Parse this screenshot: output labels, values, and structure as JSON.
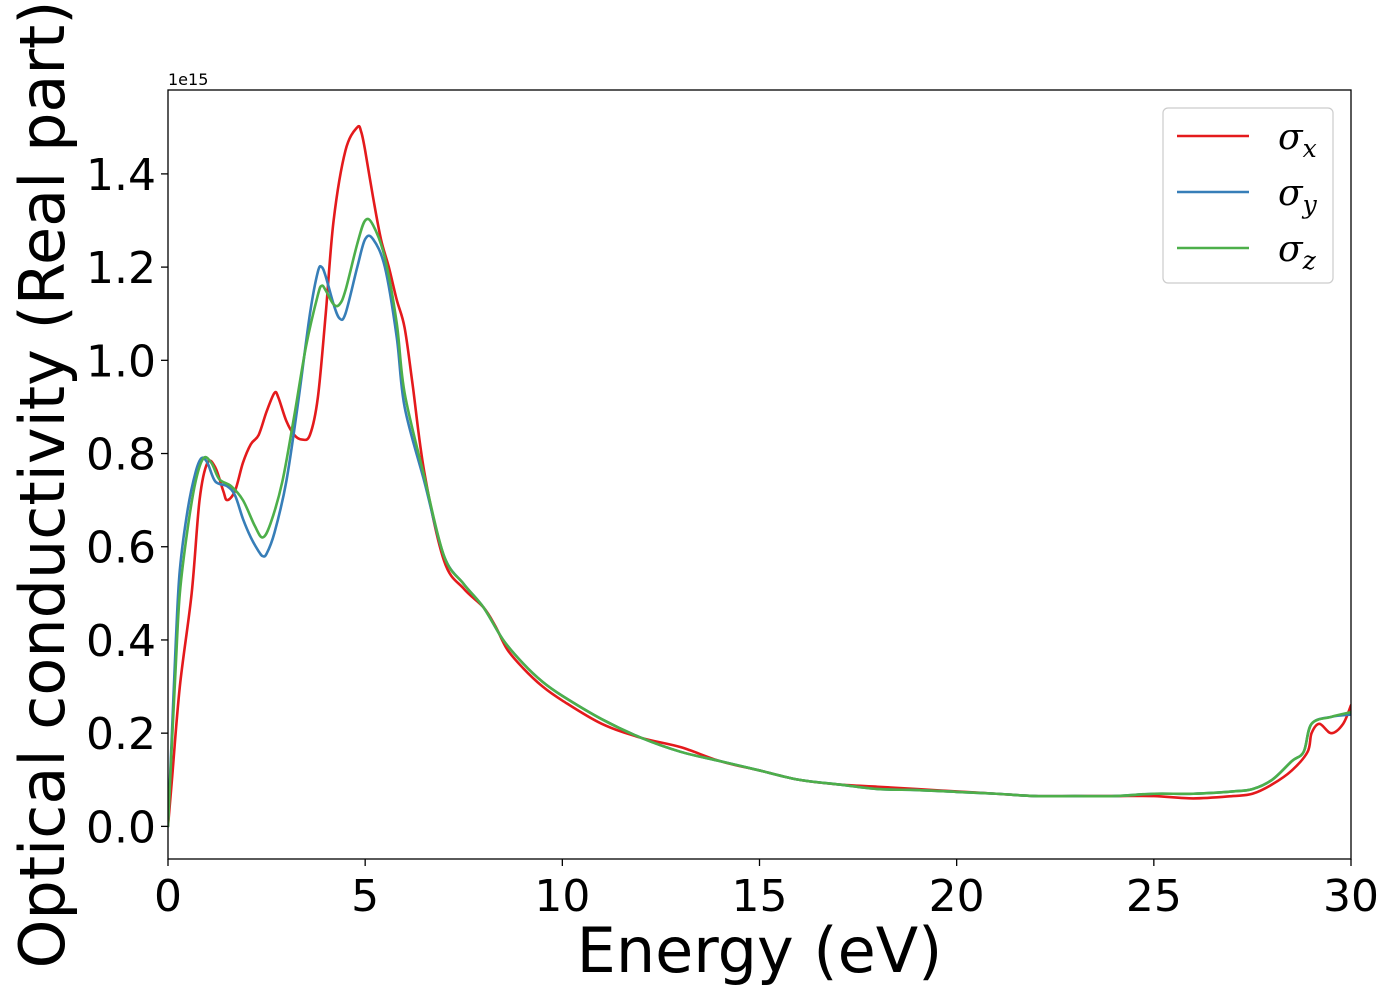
{
  "chart_data": {
    "type": "line",
    "xlabel": "Energy (eV)",
    "ylabel": "Optical conductivity (Real part)",
    "y_offset_label": "1e15",
    "xlim": [
      0,
      30
    ],
    "ylim": [
      -0.07,
      1.58
    ],
    "xticks": [
      0,
      5,
      10,
      15,
      20,
      25,
      30
    ],
    "xtick_labels": [
      "0",
      "5",
      "10",
      "15",
      "20",
      "25",
      "30"
    ],
    "yticks": [
      0.0,
      0.2,
      0.4,
      0.6,
      0.8,
      1.0,
      1.2,
      1.4
    ],
    "ytick_labels": [
      "0.0",
      "0.2",
      "0.4",
      "0.6",
      "0.8",
      "1.0",
      "1.2",
      "1.4"
    ],
    "grid": false,
    "legend_position": "top-right",
    "series": [
      {
        "name": "σx",
        "symbol": "σ",
        "subscript": "x",
        "color": "#e41a1c",
        "x": [
          0,
          0.1,
          0.3,
          0.6,
          0.8,
          1.0,
          1.2,
          1.4,
          1.5,
          1.7,
          1.9,
          2.1,
          2.3,
          2.5,
          2.7,
          2.8,
          3.0,
          3.2,
          3.4,
          3.6,
          3.8,
          4.0,
          4.2,
          4.5,
          4.8,
          4.9,
          5.0,
          5.2,
          5.4,
          5.6,
          5.8,
          6.0,
          6.2,
          6.5,
          7.0,
          7.5,
          8.0,
          8.3,
          8.6,
          9.0,
          9.5,
          10,
          11,
          12,
          13,
          14,
          15,
          16,
          17,
          18,
          19,
          20,
          21,
          22,
          23,
          24,
          25,
          26,
          27,
          27.5,
          28,
          28.5,
          28.9,
          29.0,
          29.2,
          29.5,
          29.8,
          30
        ],
        "y": [
          0.0,
          0.1,
          0.3,
          0.5,
          0.7,
          0.78,
          0.77,
          0.72,
          0.7,
          0.72,
          0.78,
          0.82,
          0.84,
          0.89,
          0.93,
          0.92,
          0.87,
          0.84,
          0.83,
          0.84,
          0.92,
          1.1,
          1.3,
          1.45,
          1.5,
          1.49,
          1.45,
          1.35,
          1.26,
          1.2,
          1.13,
          1.07,
          0.95,
          0.76,
          0.57,
          0.51,
          0.47,
          0.43,
          0.38,
          0.34,
          0.3,
          0.27,
          0.22,
          0.19,
          0.17,
          0.14,
          0.12,
          0.1,
          0.09,
          0.085,
          0.08,
          0.075,
          0.07,
          0.065,
          0.065,
          0.065,
          0.065,
          0.06,
          0.065,
          0.07,
          0.09,
          0.12,
          0.16,
          0.2,
          0.22,
          0.2,
          0.22,
          0.26
        ]
      },
      {
        "name": "σy",
        "symbol": "σ",
        "subscript": "y",
        "color": "#377eb8",
        "x": [
          0,
          0.1,
          0.2,
          0.3,
          0.5,
          0.7,
          0.85,
          1.0,
          1.2,
          1.5,
          1.7,
          1.9,
          2.1,
          2.3,
          2.4,
          2.5,
          2.7,
          3.0,
          3.3,
          3.6,
          3.8,
          3.9,
          4.0,
          4.2,
          4.35,
          4.5,
          4.8,
          5.0,
          5.2,
          5.5,
          5.8,
          6.0,
          6.5,
          7.0,
          7.5,
          8.0,
          8.5,
          9.0,
          9.5,
          10,
          11,
          12,
          13,
          14,
          15,
          16,
          17,
          18,
          19,
          20,
          21,
          22,
          23,
          24,
          25,
          26,
          27,
          27.5,
          28,
          28.5,
          28.8,
          29.0,
          29.5,
          30
        ],
        "y": [
          0.0,
          0.2,
          0.4,
          0.55,
          0.68,
          0.76,
          0.79,
          0.78,
          0.74,
          0.73,
          0.71,
          0.66,
          0.62,
          0.59,
          0.58,
          0.585,
          0.63,
          0.74,
          0.91,
          1.1,
          1.19,
          1.2,
          1.18,
          1.12,
          1.09,
          1.1,
          1.2,
          1.26,
          1.26,
          1.2,
          1.05,
          0.9,
          0.74,
          0.58,
          0.52,
          0.47,
          0.4,
          0.35,
          0.31,
          0.28,
          0.23,
          0.19,
          0.16,
          0.14,
          0.12,
          0.1,
          0.09,
          0.08,
          0.078,
          0.074,
          0.07,
          0.065,
          0.065,
          0.065,
          0.07,
          0.07,
          0.075,
          0.08,
          0.1,
          0.14,
          0.16,
          0.22,
          0.235,
          0.24
        ]
      },
      {
        "name": "σz",
        "symbol": "σ",
        "subscript": "z",
        "color": "#4daf4a",
        "x": [
          0,
          0.1,
          0.2,
          0.3,
          0.5,
          0.7,
          0.9,
          1.1,
          1.3,
          1.6,
          1.9,
          2.2,
          2.4,
          2.6,
          2.9,
          3.2,
          3.5,
          3.8,
          3.9,
          4.0,
          4.2,
          4.35,
          4.5,
          4.8,
          5.0,
          5.2,
          5.5,
          5.8,
          6.0,
          6.5,
          7.0,
          7.5,
          8.0,
          8.5,
          9.0,
          9.5,
          10,
          11,
          12,
          13,
          14,
          15,
          16,
          17,
          18,
          19,
          20,
          21,
          22,
          23,
          24,
          25,
          26,
          27,
          27.5,
          28,
          28.5,
          28.8,
          29.0,
          29.5,
          30
        ],
        "y": [
          0.0,
          0.18,
          0.35,
          0.5,
          0.64,
          0.74,
          0.79,
          0.78,
          0.745,
          0.73,
          0.7,
          0.645,
          0.62,
          0.65,
          0.74,
          0.88,
          1.03,
          1.14,
          1.16,
          1.15,
          1.12,
          1.12,
          1.15,
          1.25,
          1.3,
          1.29,
          1.22,
          1.08,
          0.93,
          0.75,
          0.58,
          0.52,
          0.47,
          0.4,
          0.35,
          0.31,
          0.28,
          0.23,
          0.19,
          0.16,
          0.14,
          0.12,
          0.1,
          0.09,
          0.08,
          0.078,
          0.074,
          0.07,
          0.065,
          0.065,
          0.065,
          0.07,
          0.07,
          0.075,
          0.08,
          0.1,
          0.14,
          0.16,
          0.22,
          0.235,
          0.245
        ]
      }
    ]
  }
}
